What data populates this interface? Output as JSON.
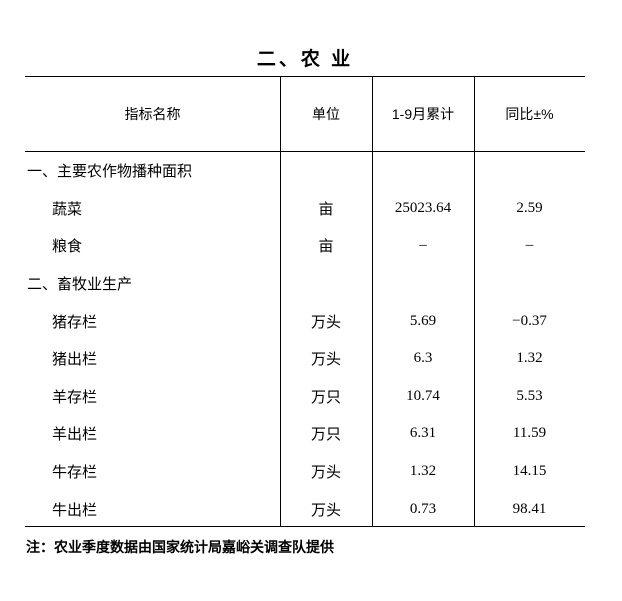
{
  "title": "二、农 业",
  "table": {
    "headers": [
      "指标名称",
      "单位",
      "1-9月累计",
      "同比±%"
    ],
    "rows": [
      {
        "type": "section",
        "name": "一、主要农作物播种面积",
        "unit": "",
        "value": "",
        "yoy": ""
      },
      {
        "type": "item",
        "name": "蔬菜",
        "unit": "亩",
        "value": "25023.64",
        "yoy": "2.59"
      },
      {
        "type": "item",
        "name": "粮食",
        "unit": "亩",
        "value": "–",
        "yoy": "–"
      },
      {
        "type": "section",
        "name": "二、畜牧业生产",
        "unit": "",
        "value": "",
        "yoy": ""
      },
      {
        "type": "item",
        "name": "猪存栏",
        "unit": "万头",
        "value": "5.69",
        "yoy": "−0.37"
      },
      {
        "type": "item",
        "name": "猪出栏",
        "unit": "万头",
        "value": "6.3",
        "yoy": "1.32"
      },
      {
        "type": "item",
        "name": "羊存栏",
        "unit": "万只",
        "value": "10.74",
        "yoy": "5.53"
      },
      {
        "type": "item",
        "name": "羊出栏",
        "unit": "万只",
        "value": "6.31",
        "yoy": "11.59"
      },
      {
        "type": "item",
        "name": "牛存栏",
        "unit": "万头",
        "value": "1.32",
        "yoy": "14.15"
      },
      {
        "type": "item",
        "name": "牛出栏",
        "unit": "万头",
        "value": "0.73",
        "yoy": "98.41"
      }
    ]
  },
  "note": "注：农业季度数据由国家统计局嘉峪关调查队提供"
}
